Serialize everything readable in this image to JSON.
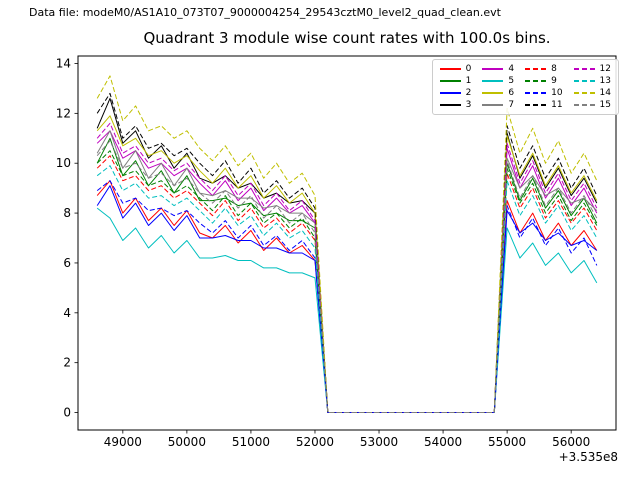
{
  "header": {
    "data_file_label": "Data file: modeM0/AS1A10_073T07_9000004254_29543cztM0_level2_quad_clean.evt"
  },
  "chart_data": {
    "type": "line",
    "title": "Quadrant 3 module wise count rates with 100.0s bins.",
    "xlabel": "",
    "ylabel": "",
    "x_offset_label": "+3.535e8",
    "grid": false,
    "legend_position": "upper right",
    "legend_columns": 4,
    "xlim": [
      48300,
      56700
    ],
    "ylim": [
      -0.7,
      14.3
    ],
    "xticks": [
      49000,
      50000,
      51000,
      52000,
      53000,
      54000,
      55000,
      56000
    ],
    "yticks": [
      0,
      2,
      4,
      6,
      8,
      10,
      12,
      14
    ],
    "x": [
      48600,
      48800,
      49000,
      49200,
      49400,
      49600,
      49800,
      50000,
      50200,
      50400,
      50600,
      50800,
      51000,
      51200,
      51400,
      51600,
      51800,
      52000,
      52200,
      52400,
      52600,
      52800,
      53000,
      53200,
      53400,
      53600,
      53800,
      54000,
      54200,
      54400,
      54600,
      54800,
      55000,
      55200,
      55400,
      55600,
      55800,
      56000,
      56200,
      56400
    ],
    "series": [
      {
        "name": "0",
        "color": "#ff0000",
        "dash": false,
        "values": [
          8.7,
          9.3,
          8.0,
          8.6,
          7.7,
          8.2,
          7.5,
          8.1,
          7.2,
          7.0,
          7.5,
          6.8,
          7.3,
          6.5,
          7.0,
          6.4,
          6.7,
          6.1,
          0,
          0,
          0,
          0,
          0,
          0,
          0,
          0,
          0,
          0,
          0,
          0,
          0,
          0,
          8.5,
          7.2,
          8.0,
          6.9,
          7.6,
          6.7,
          7.3,
          6.5
        ]
      },
      {
        "name": "1",
        "color": "#008000",
        "dash": false,
        "values": [
          10.0,
          11.0,
          9.5,
          10.1,
          9.1,
          9.7,
          8.8,
          9.5,
          8.5,
          8.5,
          8.6,
          8.3,
          8.4,
          7.9,
          8.0,
          7.7,
          7.7,
          7.4,
          0,
          0,
          0,
          0,
          0,
          0,
          0,
          0,
          0,
          0,
          0,
          0,
          0,
          0,
          10.0,
          8.5,
          9.4,
          8.2,
          8.9,
          7.9,
          8.6,
          7.6
        ]
      },
      {
        "name": "2",
        "color": "#0000ff",
        "dash": false,
        "values": [
          8.3,
          9.1,
          7.8,
          8.4,
          7.5,
          8.0,
          7.3,
          7.9,
          7.0,
          7.0,
          7.1,
          6.9,
          6.9,
          6.6,
          6.6,
          6.4,
          6.4,
          6.1,
          0,
          0,
          0,
          0,
          0,
          0,
          0,
          0,
          0,
          0,
          0,
          0,
          0,
          0,
          8.1,
          7.2,
          7.6,
          6.9,
          7.2,
          6.7,
          6.9,
          6.5
        ]
      },
      {
        "name": "3",
        "color": "#000000",
        "dash": false,
        "values": [
          11.4,
          12.6,
          10.8,
          11.3,
          10.2,
          10.7,
          9.8,
          10.4,
          9.4,
          9.2,
          9.5,
          9.0,
          9.2,
          8.6,
          8.8,
          8.4,
          8.5,
          8.0,
          0,
          0,
          0,
          0,
          0,
          0,
          0,
          0,
          0,
          0,
          0,
          0,
          0,
          0,
          11.2,
          9.4,
          10.3,
          9.0,
          9.8,
          8.7,
          9.4,
          8.4
        ]
      },
      {
        "name": "4",
        "color": "#bf00bf",
        "dash": false,
        "values": [
          10.8,
          11.3,
          10.2,
          10.5,
          9.8,
          10.0,
          9.5,
          9.8,
          9.2,
          8.7,
          9.3,
          8.5,
          9.0,
          8.1,
          8.6,
          8.0,
          8.3,
          7.6,
          0,
          0,
          0,
          0,
          0,
          0,
          0,
          0,
          0,
          0,
          0,
          0,
          0,
          0,
          10.6,
          9.0,
          9.9,
          8.6,
          9.4,
          8.3,
          9.0,
          8.0
        ]
      },
      {
        "name": "5",
        "color": "#00bfbf",
        "dash": false,
        "values": [
          8.2,
          7.8,
          6.9,
          7.4,
          6.6,
          7.1,
          6.4,
          6.9,
          6.2,
          6.2,
          6.3,
          6.1,
          6.1,
          5.8,
          5.8,
          5.6,
          5.6,
          5.4,
          0,
          0,
          0,
          0,
          0,
          0,
          0,
          0,
          0,
          0,
          0,
          0,
          0,
          0,
          7.4,
          6.2,
          6.8,
          5.9,
          6.4,
          5.6,
          6.1,
          5.2
        ]
      },
      {
        "name": "6",
        "color": "#bfbf00",
        "dash": false,
        "values": [
          11.3,
          11.9,
          10.7,
          11.0,
          10.3,
          10.5,
          10.0,
          10.3,
          9.7,
          9.2,
          9.8,
          9.0,
          9.5,
          8.6,
          9.1,
          8.4,
          8.8,
          8.0,
          0,
          0,
          0,
          0,
          0,
          0,
          0,
          0,
          0,
          0,
          0,
          0,
          0,
          0,
          11.1,
          9.5,
          10.4,
          9.1,
          9.9,
          8.8,
          9.5,
          8.5
        ]
      },
      {
        "name": "7",
        "color": "#808080",
        "dash": false,
        "values": [
          10.4,
          11.3,
          9.8,
          10.5,
          9.4,
          10.0,
          9.1,
          9.8,
          8.8,
          8.7,
          8.9,
          8.6,
          8.6,
          8.2,
          8.3,
          8.0,
          8.0,
          7.6,
          0,
          0,
          0,
          0,
          0,
          0,
          0,
          0,
          0,
          0,
          0,
          0,
          0,
          0,
          10.2,
          9.0,
          9.5,
          8.7,
          9.0,
          8.4,
          8.6,
          8.1
        ]
      },
      {
        "name": "8",
        "color": "#ff0000",
        "dash": true,
        "values": [
          9.8,
          10.3,
          9.3,
          9.5,
          8.9,
          9.1,
          8.6,
          8.9,
          8.4,
          7.9,
          8.5,
          7.7,
          8.2,
          7.4,
          7.8,
          7.2,
          7.6,
          6.9,
          0,
          0,
          0,
          0,
          0,
          0,
          0,
          0,
          0,
          0,
          0,
          0,
          0,
          0,
          9.6,
          8.2,
          9.0,
          7.8,
          8.5,
          7.6,
          8.2,
          7.3
        ]
      },
      {
        "name": "9",
        "color": "#008000",
        "dash": true,
        "values": [
          10.0,
          10.5,
          9.5,
          9.7,
          9.1,
          9.3,
          8.8,
          9.1,
          8.6,
          8.1,
          8.7,
          7.9,
          8.4,
          7.6,
          8.0,
          7.4,
          7.8,
          7.0,
          0,
          0,
          0,
          0,
          0,
          0,
          0,
          0,
          0,
          0,
          0,
          0,
          0,
          0,
          9.8,
          8.4,
          9.2,
          8.0,
          8.7,
          7.7,
          8.4,
          7.5
        ]
      },
      {
        "name": "10",
        "color": "#0000ff",
        "dash": true,
        "values": [
          8.9,
          9.3,
          8.4,
          8.6,
          8.1,
          8.2,
          7.9,
          8.1,
          7.6,
          7.2,
          7.7,
          7.0,
          7.5,
          6.7,
          7.1,
          6.5,
          6.9,
          6.2,
          0,
          0,
          0,
          0,
          0,
          0,
          0,
          0,
          0,
          0,
          0,
          0,
          0,
          0,
          8.3,
          7.0,
          7.8,
          6.7,
          7.4,
          6.4,
          7.0,
          5.9
        ]
      },
      {
        "name": "11",
        "color": "#000000",
        "dash": true,
        "values": [
          12.0,
          12.8,
          11.0,
          11.5,
          10.6,
          10.8,
          10.3,
          10.6,
          10.0,
          9.5,
          10.1,
          9.2,
          9.8,
          8.8,
          9.3,
          8.6,
          9.0,
          8.2,
          0,
          0,
          0,
          0,
          0,
          0,
          0,
          0,
          0,
          0,
          0,
          0,
          0,
          0,
          11.5,
          9.8,
          10.7,
          9.4,
          10.2,
          9.0,
          9.8,
          8.7
        ]
      },
      {
        "name": "12",
        "color": "#bf00bf",
        "dash": true,
        "values": [
          11.0,
          11.6,
          10.4,
          10.7,
          10.0,
          10.2,
          9.7,
          10.0,
          9.4,
          8.9,
          9.5,
          8.7,
          9.2,
          8.3,
          8.8,
          8.1,
          8.5,
          7.7,
          0,
          0,
          0,
          0,
          0,
          0,
          0,
          0,
          0,
          0,
          0,
          0,
          0,
          0,
          10.8,
          9.2,
          10.1,
          8.8,
          9.6,
          8.5,
          9.2,
          8.2
        ]
      },
      {
        "name": "13",
        "color": "#00bfbf",
        "dash": true,
        "values": [
          9.5,
          9.9,
          8.9,
          9.2,
          8.6,
          8.7,
          8.3,
          8.6,
          8.1,
          7.6,
          8.2,
          7.5,
          7.9,
          7.1,
          7.6,
          7.0,
          7.3,
          6.6,
          0,
          0,
          0,
          0,
          0,
          0,
          0,
          0,
          0,
          0,
          0,
          0,
          0,
          0,
          9.3,
          7.9,
          8.7,
          7.6,
          8.3,
          7.3,
          7.9,
          7.0
        ]
      },
      {
        "name": "14",
        "color": "#bfbf00",
        "dash": true,
        "values": [
          12.6,
          13.5,
          11.7,
          12.3,
          11.3,
          11.5,
          11.0,
          11.3,
          10.6,
          10.1,
          10.7,
          9.9,
          10.4,
          9.4,
          10.0,
          9.2,
          9.6,
          8.7,
          0,
          0,
          0,
          0,
          0,
          0,
          0,
          0,
          0,
          0,
          0,
          0,
          0,
          0,
          12.2,
          10.4,
          11.4,
          10.0,
          10.9,
          9.6,
          10.4,
          9.3
        ]
      },
      {
        "name": "15",
        "color": "#808080",
        "dash": true,
        "values": [
          10.3,
          10.9,
          9.8,
          10.0,
          9.4,
          9.6,
          9.1,
          9.4,
          8.8,
          8.4,
          8.9,
          8.2,
          8.7,
          7.8,
          8.3,
          7.6,
          8.0,
          7.2,
          0,
          0,
          0,
          0,
          0,
          0,
          0,
          0,
          0,
          0,
          0,
          0,
          0,
          0,
          10.1,
          8.6,
          9.5,
          8.3,
          9.0,
          8.0,
          8.7,
          7.8
        ]
      }
    ]
  }
}
